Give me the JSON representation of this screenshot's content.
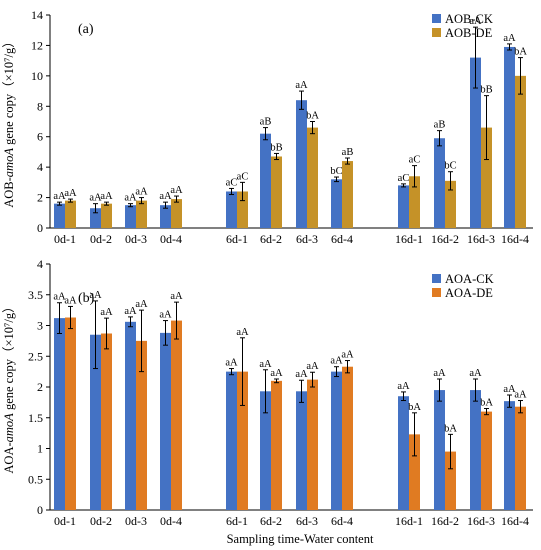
{
  "figure": {
    "xlabel": "Sampling time-Water content"
  },
  "chart_data": [
    {
      "type": "bar",
      "panel_label": "(a)",
      "ylabel_pre": "AOB-",
      "ylabel_italic": "amoA",
      "ylabel_post": " gene copy（×10⁷/g）",
      "ylim": [
        0,
        14
      ],
      "yticks": [
        0,
        2,
        4,
        6,
        8,
        10,
        12,
        14
      ],
      "legend_position": "top-right",
      "categories": [
        "0d-1",
        "0d-2",
        "0d-3",
        "0d-4",
        "6d-1",
        "6d-2",
        "6d-3",
        "6d-4",
        "16d-1",
        "16d-2",
        "16d-3",
        "16d-4"
      ],
      "series": [
        {
          "name": "AOB-CK",
          "color": "#4472C4",
          "values": [
            1.6,
            1.3,
            1.5,
            1.5,
            2.4,
            6.2,
            8.4,
            3.2,
            2.8,
            5.9,
            11.2,
            11.9
          ],
          "errors": [
            0.1,
            0.3,
            0.1,
            0.2,
            0.2,
            0.4,
            0.6,
            0.15,
            0.1,
            0.5,
            2.0,
            0.2
          ],
          "labels": [
            "aA",
            "aA",
            "aA",
            "aA",
            "aC",
            "aB",
            "aA",
            "bC",
            "aC",
            "aB",
            "aA",
            "aA"
          ]
        },
        {
          "name": "AOB-DE",
          "color": "#C59228",
          "values": [
            1.8,
            1.6,
            1.8,
            1.9,
            2.4,
            4.7,
            6.6,
            4.4,
            3.4,
            3.1,
            6.6,
            10.0
          ],
          "errors": [
            0.1,
            0.1,
            0.2,
            0.2,
            0.6,
            0.2,
            0.4,
            0.2,
            0.7,
            0.6,
            2.1,
            1.2
          ],
          "labels": [
            "aA",
            "aA",
            "aA",
            "aA",
            "aC",
            "bB",
            "bA",
            "aB",
            "aC",
            "bC",
            "bB",
            "bA"
          ]
        }
      ]
    },
    {
      "type": "bar",
      "panel_label": "(b)",
      "ylabel_pre": "AOA-",
      "ylabel_italic": "amoA",
      "ylabel_post": " gene copy（×10⁷/g）",
      "ylim": [
        0,
        4
      ],
      "yticks": [
        0,
        0.5,
        1,
        1.5,
        2,
        2.5,
        3,
        3.5,
        4
      ],
      "legend_position": "top-right",
      "categories": [
        "0d-1",
        "0d-2",
        "0d-3",
        "0d-4",
        "6d-1",
        "6d-2",
        "6d-3",
        "6d-4",
        "16d-1",
        "16d-2",
        "16d-3",
        "16d-4"
      ],
      "series": [
        {
          "name": "AOA-CK",
          "color": "#4472C4",
          "values": [
            3.12,
            2.85,
            3.06,
            2.88,
            2.25,
            1.93,
            1.93,
            2.25,
            1.85,
            1.95,
            1.95,
            1.77
          ],
          "errors": [
            0.25,
            0.55,
            0.08,
            0.2,
            0.05,
            0.35,
            0.18,
            0.08,
            0.07,
            0.18,
            0.18,
            0.1
          ],
          "labels": [
            "aA",
            "aA",
            "aA",
            "aA",
            "aA",
            "aA",
            "aA",
            "aA",
            "aA",
            "aA",
            "aA",
            "aA"
          ]
        },
        {
          "name": "AOA-DE",
          "color": "#E07B22",
          "values": [
            3.13,
            2.87,
            2.75,
            3.08,
            2.25,
            2.1,
            2.12,
            2.33,
            1.23,
            0.95,
            1.6,
            1.68
          ],
          "errors": [
            0.18,
            0.25,
            0.5,
            0.3,
            0.55,
            0.03,
            0.12,
            0.1,
            0.35,
            0.28,
            0.05,
            0.1
          ],
          "labels": [
            "aA",
            "aA",
            "aA",
            "aA",
            "aA",
            "aA",
            "aA",
            "aA",
            "bA",
            "bA",
            "bA",
            "aA"
          ]
        }
      ]
    }
  ]
}
